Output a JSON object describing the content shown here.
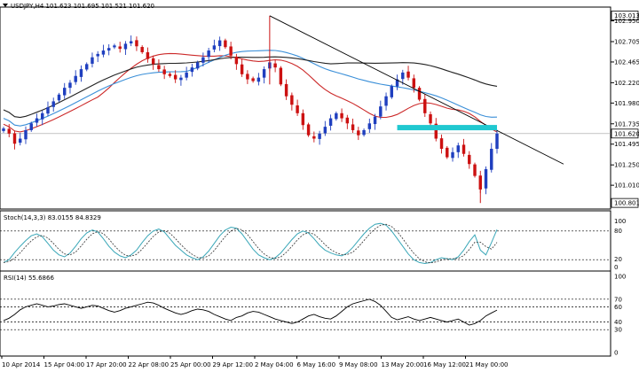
{
  "window": {
    "symbol_line": "USDJPY,H4  101.623 101.695 101.521 101.620"
  },
  "price_axis": {
    "labels": [
      "103.013",
      "102.950",
      "102.705",
      "102.465",
      "102.220",
      "101.980",
      "101.735",
      "101.620",
      "101.495",
      "101.250",
      "101.010",
      "100.801"
    ],
    "current": "101.620",
    "high_marker": "103.013",
    "low_marker": "100.801"
  },
  "stoch": {
    "label": "Stoch(14,3,3) 83.0155 84.8329",
    "axis": [
      "100",
      "80",
      "20",
      "0"
    ]
  },
  "rsi": {
    "label": "RSI(14) 55.6866",
    "axis": [
      "100",
      "70",
      "60",
      "40",
      "30",
      "0"
    ]
  },
  "time_axis": {
    "labels": [
      "10 Apr 2014",
      "15 Apr 04:00",
      "17 Apr 20:00",
      "22 Apr 08:00",
      "25 Apr 00:00",
      "29 Apr 12:00",
      "2 May 04:00",
      "6 May 16:00",
      "9 May 08:00",
      "13 May 20:00",
      "16 May 12:00",
      "21 May 00:00"
    ]
  },
  "colors": {
    "bull": "#1f3fbf",
    "bear": "#cc1111",
    "ma_red": "#cc2a2a",
    "ma_blue": "#3a8fd8",
    "ma_black": "#222222",
    "signal_dashed": "#3aa7b8",
    "support_band": "#20c8d0",
    "trendline": "#000000"
  },
  "chart_data": {
    "type": "candlestick",
    "symbol": "USDJPY",
    "timeframe": "H4",
    "ohlc_last": {
      "open": 101.623,
      "high": 101.695,
      "low": 101.521,
      "close": 101.62
    },
    "ylim": [
      100.75,
      103.05
    ],
    "x_count": 90,
    "closes": [
      101.68,
      101.62,
      101.5,
      101.56,
      101.66,
      101.74,
      101.8,
      101.86,
      101.93,
      102.0,
      102.08,
      102.16,
      102.22,
      102.3,
      102.38,
      102.44,
      102.52,
      102.56,
      102.6,
      102.63,
      102.66,
      102.62,
      102.68,
      102.71,
      102.65,
      102.58,
      102.5,
      102.44,
      102.38,
      102.32,
      102.3,
      102.26,
      102.28,
      102.34,
      102.4,
      102.46,
      102.52,
      102.6,
      102.66,
      102.72,
      102.64,
      102.54,
      102.44,
      102.32,
      102.26,
      102.24,
      102.28,
      102.38,
      102.46,
      102.4,
      102.2,
      102.06,
      101.96,
      101.86,
      101.72,
      101.6,
      101.56,
      101.62,
      101.7,
      101.8,
      101.86,
      101.8,
      101.74,
      101.66,
      101.6,
      101.66,
      101.74,
      101.82,
      101.94,
      102.06,
      102.18,
      102.26,
      102.34,
      102.28,
      102.16,
      102.02,
      101.86,
      101.74,
      101.56,
      101.44,
      101.34,
      101.4,
      101.48,
      101.38,
      101.26,
      101.12,
      100.96,
      101.2,
      101.44,
      101.62
    ],
    "stoch_k": [
      14,
      20,
      35,
      48,
      60,
      70,
      74,
      68,
      54,
      40,
      30,
      26,
      34,
      48,
      64,
      76,
      82,
      78,
      64,
      48,
      36,
      28,
      24,
      30,
      40,
      56,
      70,
      80,
      84,
      78,
      64,
      50,
      40,
      30,
      24,
      20,
      26,
      38,
      54,
      70,
      82,
      88,
      86,
      74,
      58,
      42,
      30,
      24,
      20,
      24,
      34,
      48,
      62,
      74,
      80,
      76,
      64,
      50,
      40,
      34,
      30,
      28,
      34,
      46,
      60,
      74,
      86,
      94,
      96,
      92,
      80,
      64,
      48,
      32,
      20,
      14,
      12,
      14,
      20,
      24,
      22,
      20,
      26,
      40,
      58,
      72,
      40,
      30,
      56,
      83
    ],
    "rsi": [
      42,
      45,
      50,
      56,
      60,
      62,
      64,
      62,
      60,
      61,
      63,
      64,
      62,
      60,
      58,
      60,
      62,
      61,
      58,
      55,
      53,
      55,
      58,
      60,
      62,
      64,
      66,
      65,
      62,
      58,
      55,
      52,
      50,
      52,
      55,
      57,
      56,
      54,
      50,
      47,
      44,
      42,
      46,
      48,
      52,
      54,
      53,
      50,
      47,
      44,
      42,
      40,
      38,
      40,
      44,
      48,
      50,
      47,
      45,
      44,
      48,
      54,
      60,
      64,
      66,
      68,
      70,
      67,
      62,
      54,
      46,
      43,
      45,
      47,
      44,
      42,
      44,
      46,
      44,
      42,
      40,
      42,
      44,
      40,
      36,
      38,
      42,
      48,
      52,
      55.69
    ],
    "overlays": [
      {
        "name": "moving average (red)",
        "color": "#cc2a2a"
      },
      {
        "name": "moving average (blue)",
        "color": "#3a8fd8"
      },
      {
        "name": "moving average (black)",
        "color": "#222222"
      }
    ],
    "trendline": {
      "from": {
        "index": 48,
        "price": 103.01
      },
      "to": {
        "index": 101,
        "price": 101.26
      }
    },
    "support_band": {
      "from_index": 71,
      "to_index": 89,
      "price": 101.69
    }
  }
}
